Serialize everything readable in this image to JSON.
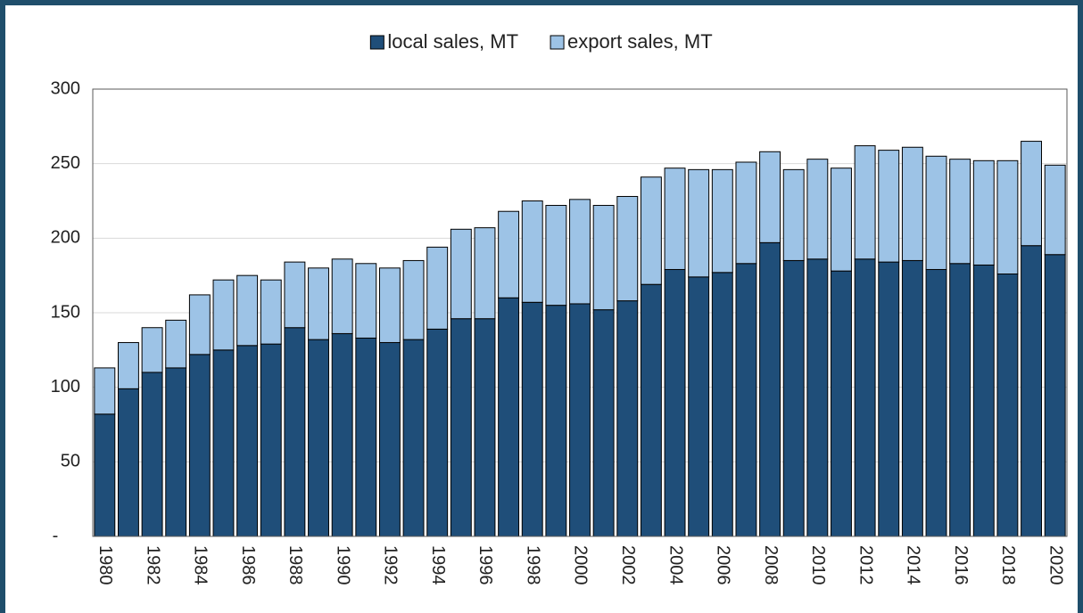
{
  "chart_data": {
    "type": "stacked-bar",
    "categories": [
      "1980",
      null,
      "1982",
      null,
      "1984",
      null,
      "1986",
      null,
      "1988",
      null,
      "1990",
      null,
      "1992",
      null,
      "1994",
      null,
      "1996",
      null,
      "1998",
      null,
      "2000",
      null,
      "2002",
      null,
      "2004",
      null,
      "2006",
      null,
      "2008",
      null,
      "2010",
      null,
      "2012",
      null,
      "2014",
      null,
      "2016",
      null,
      "2018",
      null,
      "2020"
    ],
    "series": [
      {
        "name": "local sales, MT",
        "color": "#1f4e79",
        "values": [
          82,
          99,
          110,
          113,
          122,
          125,
          128,
          129,
          140,
          132,
          136,
          133,
          130,
          132,
          139,
          146,
          146,
          160,
          157,
          155,
          156,
          152,
          158,
          169,
          179,
          174,
          177,
          183,
          197,
          185,
          186,
          178,
          186,
          184,
          185,
          179,
          183,
          182,
          176,
          195,
          189
        ]
      },
      {
        "name": "export sales, MT",
        "color": "#9dc3e6",
        "values": [
          31,
          31,
          30,
          32,
          40,
          47,
          47,
          43,
          44,
          48,
          50,
          50,
          50,
          53,
          55,
          60,
          61,
          58,
          68,
          67,
          70,
          70,
          70,
          72,
          68,
          72,
          69,
          68,
          61,
          61,
          67,
          69,
          76,
          75,
          76,
          76,
          70,
          70,
          76,
          70,
          60
        ]
      }
    ],
    "ylim": [
      0,
      300
    ],
    "yticks": [
      {
        "value": 0,
        "label": "-"
      },
      50,
      100,
      150,
      200,
      250,
      300
    ],
    "grid": true,
    "legend": "top"
  }
}
